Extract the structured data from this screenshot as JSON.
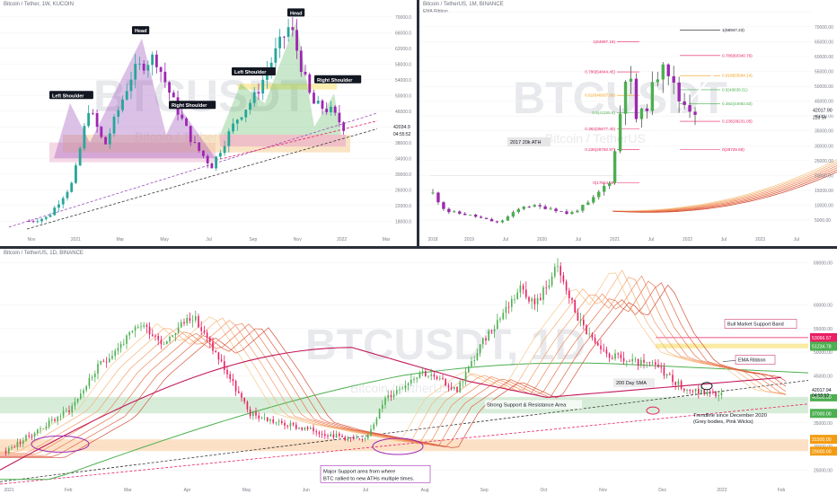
{
  "panels": {
    "top_left": {
      "header": "Bitcoin / Tether, 1W, KUCOIN",
      "watermark": "BTCUSDT",
      "watermark_sub": "Bitcoin / TetherUS",
      "price_label": "42034.9",
      "timer_label": "04:55:52"
    },
    "top_right": {
      "header": "Bitcoin / TetherUS, 1M, BINANCE",
      "indicator": "EMA Ribbon",
      "watermark": "BTCUSDT",
      "watermark_sub": "Bitcoin / TetherUS",
      "price_label": "42017.90",
      "timer_label": "22d 5h"
    },
    "bottom": {
      "header": "Bitcoin / TetherUS, 1D, BINANCE",
      "watermark": "BTCUSDT",
      "watermark_suffix": "1D",
      "watermark_sub": "Bitcoin / TetherUS",
      "price_label": "42017.94",
      "timer_label": "04:55:52"
    }
  },
  "chart_data": [
    {
      "type": "candlestick",
      "panel": "top_left",
      "title": "Bitcoin / Tether, 1W, KUCOIN",
      "y_ticks": [
        "70000.0",
        "66000.0",
        "62000.0",
        "58000.0",
        "54000.0",
        "50000.0",
        "46000.0",
        "42000.0",
        "38000.0",
        "34000.0",
        "30000.0",
        "26000.0",
        "22000.0",
        "18000.0"
      ],
      "x_ticks": [
        "Nov",
        "2021",
        "Mar",
        "May",
        "Jul",
        "Sep",
        "Nov",
        "2022",
        "Mar"
      ],
      "annotations": [
        "Head",
        "Left Shoulder",
        "Right Shoulder",
        "Head",
        "Left Shoulder",
        "Right Shoulder"
      ],
      "last_price": 42034.9,
      "patterns": [
        {
          "name": "head-and-shoulders",
          "left_shoulder": 40000,
          "head": 64000,
          "right_shoulder": 41000
        },
        {
          "name": "head-and-shoulders",
          "left_shoulder": 52000,
          "head": 69000,
          "right_shoulder": 52000
        }
      ]
    },
    {
      "type": "candlestick",
      "panel": "top_right",
      "title": "Bitcoin / TetherUS, 1M, BINANCE",
      "y_ticks": [
        "75000.00",
        "70000.00",
        "65000.00",
        "60000.00",
        "55000.00",
        "50000.00",
        "45000.00",
        "40000.00",
        "35000.00",
        "30000.00",
        "25000.00",
        "20000.00",
        "15000.00",
        "10000.00",
        "5000.00"
      ],
      "x_ticks": [
        "2018",
        "2019",
        "Jul",
        "2020",
        "Jul",
        "2021",
        "Jul",
        "2022",
        "Jul",
        "2023",
        "Jul"
      ],
      "fib_levels": [
        {
          "level": "1(64997.19)",
          "price": 64997.19
        },
        {
          "level": "0.786(54844.45)",
          "price": 54844.45
        },
        {
          "level": "0.618(46937.80)",
          "price": 46937.8
        },
        {
          "level": "0.5(41155.8)",
          "price": 41155.8
        },
        {
          "level": "0.382(35677.40)",
          "price": 35677.4
        },
        {
          "level": "0.236(28760.97)",
          "price": 28760.97
        },
        {
          "level": "0(17554.69)",
          "price": 17554.69
        }
      ],
      "fib_levels_2": [
        {
          "level": "1(68947.23)",
          "price": 68947.23
        },
        {
          "level": "0.786(60340.76)",
          "price": 60340.76
        },
        {
          "level": "0.618(53584.14)",
          "price": 53584.14
        },
        {
          "level": "0.5(48838.51)",
          "price": 48838.51
        },
        {
          "level": "0.382(44092.83)",
          "price": 44092.83
        },
        {
          "level": "0.236(38231.05)",
          "price": 38231.05
        },
        {
          "level": "0(28729.68)",
          "price": 28729.68
        }
      ],
      "annotations": [
        "2017 20k ATH"
      ],
      "last_price": 42017.9
    },
    {
      "type": "candlestick",
      "panel": "bottom",
      "title": "Bitcoin / TetherUS, 1D, BINANCE",
      "y_ticks": [
        "69000.00",
        "60000.00",
        "55000.00",
        "50000.00",
        "45000.00",
        "40000.00",
        "35000.00",
        "30000.00",
        "25000.00"
      ],
      "x_ticks": [
        "2021",
        "Feb",
        "Mar",
        "Apr",
        "May",
        "Jun",
        "Jul",
        "Aug",
        "Sep",
        "Oct",
        "Nov",
        "Dec",
        "2022",
        "Feb"
      ],
      "price_labels": [
        53066.57,
        51234.78,
        40500.0,
        37000.0,
        31500.0,
        29000.0
      ],
      "annotations": [
        "Bull Market Support Band",
        "EMA Ribbon",
        "200 Day SMA",
        "Strong Support & Resistance Area",
        "Trendline since December 2020 (Grey bodies, Pink Wicks)",
        "Major Support area from where BTC rallied to new ATHs multiple times."
      ],
      "zones": [
        {
          "name": "Strong Support & Resistance Area",
          "from": 37000,
          "to": 40500
        },
        {
          "name": "Major Support area",
          "from": 29000,
          "to": 31500
        }
      ],
      "last_price": 42017.94
    }
  ]
}
